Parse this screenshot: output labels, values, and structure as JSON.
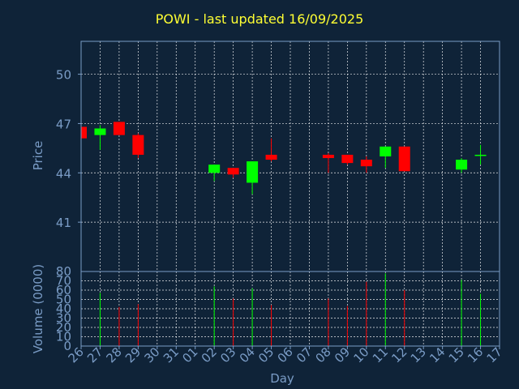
{
  "chart_data": [
    {
      "type": "candlestick",
      "title": "POWI - last updated 16/09/2025",
      "ylabel": "Price",
      "xlabel": "Day",
      "ylim": [
        38,
        52
      ],
      "yticks": [
        41,
        44,
        47,
        50
      ],
      "grid": true,
      "categories": [
        "26",
        "27",
        "28",
        "29",
        "30",
        "31",
        "01",
        "02",
        "03",
        "04",
        "05",
        "06",
        "07",
        "08",
        "09",
        "10",
        "11",
        "12",
        "13",
        "14",
        "15",
        "16",
        "17"
      ],
      "candles": [
        {
          "x": 0,
          "open": 46.8,
          "close": 46.1,
          "high": 46.9,
          "low": 46.0
        },
        {
          "x": 1,
          "open": 46.3,
          "close": 46.7,
          "high": 46.9,
          "low": 45.4
        },
        {
          "x": 2,
          "open": 47.1,
          "close": 46.3,
          "high": 47.1,
          "low": 46.3
        },
        {
          "x": 3,
          "open": 46.3,
          "close": 45.1,
          "high": 46.4,
          "low": 44.9
        },
        {
          "x": 7,
          "open": 44.0,
          "close": 44.5,
          "high": 44.5,
          "low": 43.5
        },
        {
          "x": 8,
          "open": 44.3,
          "close": 43.9,
          "high": 44.3,
          "low": 43.7
        },
        {
          "x": 9,
          "open": 43.4,
          "close": 44.7,
          "high": 44.7,
          "low": 42.7
        },
        {
          "x": 10,
          "open": 45.1,
          "close": 44.8,
          "high": 46.1,
          "low": 44.7
        },
        {
          "x": 13,
          "open": 45.1,
          "close": 44.9,
          "high": 45.2,
          "low": 44.0
        },
        {
          "x": 14,
          "open": 45.1,
          "close": 44.6,
          "high": 45.1,
          "low": 44.5
        },
        {
          "x": 15,
          "open": 44.8,
          "close": 44.4,
          "high": 45.0,
          "low": 44.0
        },
        {
          "x": 16,
          "open": 45.0,
          "close": 45.6,
          "high": 45.6,
          "low": 44.3
        },
        {
          "x": 17,
          "open": 45.6,
          "close": 44.1,
          "high": 45.6,
          "low": 44.1
        },
        {
          "x": 20,
          "open": 44.2,
          "close": 44.8,
          "high": 44.9,
          "low": 44.0
        },
        {
          "x": 21,
          "open": 45.1,
          "close": 45.1,
          "high": 45.7,
          "low": 44.5
        }
      ],
      "colors": {
        "up": "#00ff00",
        "down": "#ff0000",
        "grid": "#ffffff",
        "axis": "#7a9cc6",
        "frame": "#7a9cc6",
        "title": "#ffff33",
        "background": "#0f2338"
      }
    },
    {
      "type": "bar",
      "ylabel": "Volume (0000)",
      "ylim": [
        0,
        80
      ],
      "yticks": [
        0,
        10,
        20,
        30,
        40,
        50,
        60,
        70,
        80
      ],
      "bars": [
        {
          "x": 1,
          "value": 57,
          "dir": "up"
        },
        {
          "x": 2,
          "value": 42,
          "dir": "down"
        },
        {
          "x": 3,
          "value": 45,
          "dir": "down"
        },
        {
          "x": 7,
          "value": 64,
          "dir": "up"
        },
        {
          "x": 8,
          "value": 51,
          "dir": "down"
        },
        {
          "x": 9,
          "value": 62,
          "dir": "up"
        },
        {
          "x": 10,
          "value": 44,
          "dir": "down"
        },
        {
          "x": 13,
          "value": 51,
          "dir": "down"
        },
        {
          "x": 14,
          "value": 43,
          "dir": "down"
        },
        {
          "x": 15,
          "value": 69,
          "dir": "down"
        },
        {
          "x": 16,
          "value": 78,
          "dir": "up"
        },
        {
          "x": 17,
          "value": 60,
          "dir": "down"
        },
        {
          "x": 20,
          "value": 71,
          "dir": "up"
        },
        {
          "x": 21,
          "value": 56,
          "dir": "up"
        }
      ]
    }
  ]
}
